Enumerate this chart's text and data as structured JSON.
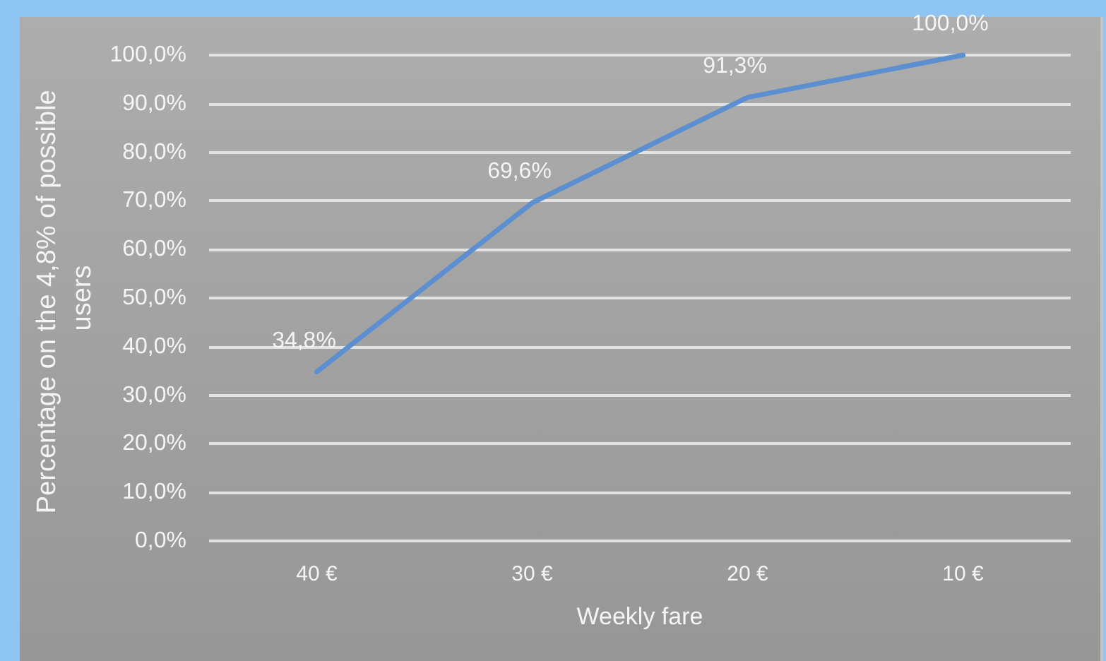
{
  "chart_data": {
    "type": "line",
    "xlabel": "Weekly fare",
    "ylabel": "Percentage on the 4,8% of possible users",
    "categories": [
      "40 €",
      "30 €",
      "20 €",
      "10 €"
    ],
    "series": [
      {
        "color": "#5b8fd0",
        "values": [
          34.8,
          69.6,
          91.3,
          100
        ],
        "value_labels": [
          "34,8%",
          "69,6%",
          "91,3%",
          "100,0%"
        ]
      }
    ],
    "ylim": [
      0,
      100
    ],
    "yticks": [
      {
        "value": 0,
        "label": "0,0%"
      },
      {
        "value": 10,
        "label": "10,0%"
      },
      {
        "value": 20,
        "label": "20,0%"
      },
      {
        "value": 30,
        "label": "30,0%"
      },
      {
        "value": 40,
        "label": "40,0%"
      },
      {
        "value": 50,
        "label": "50,0%"
      },
      {
        "value": 60,
        "label": "60,0%"
      },
      {
        "value": 70,
        "label": "70,0%"
      },
      {
        "value": 80,
        "label": "80,0%"
      },
      {
        "value": 90,
        "label": "90,0%"
      },
      {
        "value": 100,
        "label": "100,0%"
      }
    ],
    "grid": "y",
    "marker": "none",
    "line_style": "solid"
  }
}
